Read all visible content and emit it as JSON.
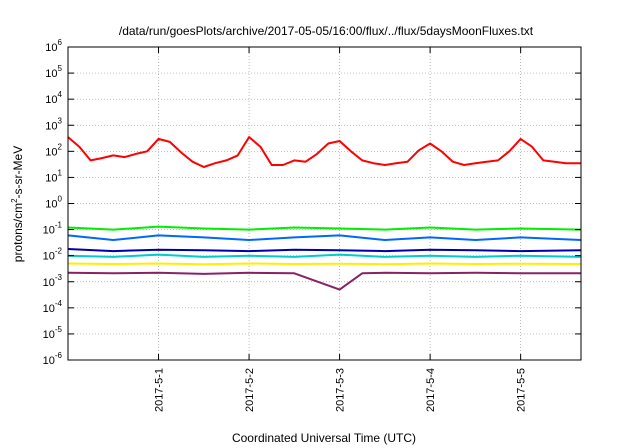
{
  "chart_data": {
    "type": "line",
    "title": "/data/run/goesPlots/archive/2017-05-05/16:00/flux/../flux/5daysMoonFluxes.txt",
    "xlabel": "Coordinated Universal Time (UTC)",
    "ylabel": "protons/cm2-s-sr-MeV",
    "ylabel_parts": {
      "pre": "protons/cm",
      "sup": "2",
      "post": "-s-sr-MeV"
    },
    "y_scale": "log",
    "ylim": [
      1e-06,
      1000000.0
    ],
    "y_ticks": [
      {
        "value": 1e-06,
        "base": "10",
        "exp": "-6"
      },
      {
        "value": 1e-05,
        "base": "10",
        "exp": "-5"
      },
      {
        "value": 0.0001,
        "base": "10",
        "exp": "-4"
      },
      {
        "value": 0.001,
        "base": "10",
        "exp": "-3"
      },
      {
        "value": 0.01,
        "base": "10",
        "exp": "-2"
      },
      {
        "value": 0.1,
        "base": "10",
        "exp": "-1"
      },
      {
        "value": 1,
        "base": "10",
        "exp": "0"
      },
      {
        "value": 10,
        "base": "10",
        "exp": "1"
      },
      {
        "value": 100,
        "base": "10",
        "exp": "2"
      },
      {
        "value": 1000,
        "base": "10",
        "exp": "3"
      },
      {
        "value": 10000,
        "base": "10",
        "exp": "4"
      },
      {
        "value": 100000,
        "base": "10",
        "exp": "5"
      },
      {
        "value": 1000000,
        "base": "10",
        "exp": "6"
      }
    ],
    "xlim": [
      "2017-04-30T00:00",
      "2017-05-05T16:00"
    ],
    "x_ticks": [
      "2017-5-1",
      "2017-5-2",
      "2017-5-3",
      "2017-5-4",
      "2017-5-5"
    ],
    "x_tick_dates": [
      "2017-05-01T00:00",
      "2017-05-02T00:00",
      "2017-05-03T00:00",
      "2017-05-04T00:00",
      "2017-05-05T00:00"
    ],
    "grid": true,
    "series": [
      {
        "color": "#ff0000",
        "points": [
          [
            "2017-04-30T00:00",
            350
          ],
          [
            "2017-04-30T03:00",
            150
          ],
          [
            "2017-04-30T06:00",
            45
          ],
          [
            "2017-04-30T09:00",
            55
          ],
          [
            "2017-04-30T12:00",
            70
          ],
          [
            "2017-04-30T15:00",
            60
          ],
          [
            "2017-04-30T18:00",
            80
          ],
          [
            "2017-04-30T21:00",
            100
          ],
          [
            "2017-05-01T00:00",
            300
          ],
          [
            "2017-05-01T03:00",
            230
          ],
          [
            "2017-05-01T06:00",
            90
          ],
          [
            "2017-05-01T09:00",
            40
          ],
          [
            "2017-05-01T12:00",
            25
          ],
          [
            "2017-05-01T15:00",
            35
          ],
          [
            "2017-05-01T18:00",
            45
          ],
          [
            "2017-05-01T21:00",
            70
          ],
          [
            "2017-05-02T00:00",
            350
          ],
          [
            "2017-05-02T03:00",
            150
          ],
          [
            "2017-05-02T06:00",
            30
          ],
          [
            "2017-05-02T09:00",
            30
          ],
          [
            "2017-05-02T12:00",
            45
          ],
          [
            "2017-05-02T15:00",
            40
          ],
          [
            "2017-05-02T18:00",
            80
          ],
          [
            "2017-05-02T21:00",
            200
          ],
          [
            "2017-05-03T00:00",
            250
          ],
          [
            "2017-05-03T03:00",
            100
          ],
          [
            "2017-05-03T06:00",
            45
          ],
          [
            "2017-05-03T09:00",
            35
          ],
          [
            "2017-05-03T12:00",
            30
          ],
          [
            "2017-05-03T15:00",
            35
          ],
          [
            "2017-05-03T18:00",
            40
          ],
          [
            "2017-05-03T21:00",
            110
          ],
          [
            "2017-05-04T00:00",
            200
          ],
          [
            "2017-05-04T03:00",
            100
          ],
          [
            "2017-05-04T06:00",
            40
          ],
          [
            "2017-05-04T09:00",
            30
          ],
          [
            "2017-05-04T12:00",
            35
          ],
          [
            "2017-05-04T15:00",
            40
          ],
          [
            "2017-05-04T18:00",
            45
          ],
          [
            "2017-05-04T21:00",
            100
          ],
          [
            "2017-05-05T00:00",
            300
          ],
          [
            "2017-05-05T03:00",
            150
          ],
          [
            "2017-05-05T06:00",
            45
          ],
          [
            "2017-05-05T09:00",
            40
          ],
          [
            "2017-05-05T12:00",
            35
          ],
          [
            "2017-05-05T16:00",
            35
          ]
        ]
      },
      {
        "color": "#00ee00",
        "points": [
          [
            "2017-04-30T00:00",
            0.12
          ],
          [
            "2017-04-30T12:00",
            0.1
          ],
          [
            "2017-05-01T00:00",
            0.13
          ],
          [
            "2017-05-01T12:00",
            0.11
          ],
          [
            "2017-05-02T00:00",
            0.1
          ],
          [
            "2017-05-02T12:00",
            0.12
          ],
          [
            "2017-05-03T00:00",
            0.11
          ],
          [
            "2017-05-03T12:00",
            0.1
          ],
          [
            "2017-05-04T00:00",
            0.12
          ],
          [
            "2017-05-04T12:00",
            0.1
          ],
          [
            "2017-05-05T00:00",
            0.11
          ],
          [
            "2017-05-05T16:00",
            0.1
          ]
        ]
      },
      {
        "color": "#0066ff",
        "points": [
          [
            "2017-04-30T00:00",
            0.06
          ],
          [
            "2017-04-30T12:00",
            0.04
          ],
          [
            "2017-05-01T00:00",
            0.06
          ],
          [
            "2017-05-01T12:00",
            0.05
          ],
          [
            "2017-05-02T00:00",
            0.04
          ],
          [
            "2017-05-02T12:00",
            0.05
          ],
          [
            "2017-05-03T00:00",
            0.06
          ],
          [
            "2017-05-03T12:00",
            0.04
          ],
          [
            "2017-05-04T00:00",
            0.05
          ],
          [
            "2017-05-04T12:00",
            0.04
          ],
          [
            "2017-05-05T00:00",
            0.05
          ],
          [
            "2017-05-05T16:00",
            0.04
          ]
        ]
      },
      {
        "color": "#0000aa",
        "points": [
          [
            "2017-04-30T00:00",
            0.018
          ],
          [
            "2017-04-30T12:00",
            0.015
          ],
          [
            "2017-05-01T00:00",
            0.017
          ],
          [
            "2017-05-01T12:00",
            0.016
          ],
          [
            "2017-05-02T00:00",
            0.015
          ],
          [
            "2017-05-02T12:00",
            0.017
          ],
          [
            "2017-05-03T00:00",
            0.016
          ],
          [
            "2017-05-03T12:00",
            0.015
          ],
          [
            "2017-05-04T00:00",
            0.017
          ],
          [
            "2017-05-04T12:00",
            0.016
          ],
          [
            "2017-05-05T00:00",
            0.015
          ],
          [
            "2017-05-05T16:00",
            0.016
          ]
        ]
      },
      {
        "color": "#00cccc",
        "points": [
          [
            "2017-04-30T00:00",
            0.01
          ],
          [
            "2017-04-30T12:00",
            0.009
          ],
          [
            "2017-05-01T00:00",
            0.011
          ],
          [
            "2017-05-01T12:00",
            0.009
          ],
          [
            "2017-05-02T00:00",
            0.01
          ],
          [
            "2017-05-02T12:00",
            0.009
          ],
          [
            "2017-05-03T00:00",
            0.011
          ],
          [
            "2017-05-03T12:00",
            0.009
          ],
          [
            "2017-05-04T00:00",
            0.01
          ],
          [
            "2017-05-04T12:00",
            0.009
          ],
          [
            "2017-05-05T00:00",
            0.01
          ],
          [
            "2017-05-05T16:00",
            0.009
          ]
        ]
      },
      {
        "color": "#ffee00",
        "points": [
          [
            "2017-04-30T00:00",
            0.005
          ],
          [
            "2017-04-30T12:00",
            0.0048
          ],
          [
            "2017-05-01T00:00",
            0.005
          ],
          [
            "2017-05-01T12:00",
            0.0047
          ],
          [
            "2017-05-02T00:00",
            0.005
          ],
          [
            "2017-05-02T12:00",
            0.0048
          ],
          [
            "2017-05-03T00:00",
            0.0049
          ],
          [
            "2017-05-03T12:00",
            0.0047
          ],
          [
            "2017-05-04T00:00",
            0.005
          ],
          [
            "2017-05-04T12:00",
            0.0048
          ],
          [
            "2017-05-05T00:00",
            0.0049
          ],
          [
            "2017-05-05T16:00",
            0.0048
          ]
        ]
      },
      {
        "color": "#882266",
        "points": [
          [
            "2017-04-30T00:00",
            0.0022
          ],
          [
            "2017-04-30T12:00",
            0.0021
          ],
          [
            "2017-05-01T00:00",
            0.0022
          ],
          [
            "2017-05-01T12:00",
            0.002
          ],
          [
            "2017-05-02T00:00",
            0.0022
          ],
          [
            "2017-05-02T12:00",
            0.0021
          ],
          [
            "2017-05-03T00:00",
            0.0005
          ],
          [
            "2017-05-03T06:00",
            0.0021
          ],
          [
            "2017-05-03T12:00",
            0.0022
          ],
          [
            "2017-05-04T00:00",
            0.0021
          ],
          [
            "2017-05-04T12:00",
            0.0022
          ],
          [
            "2017-05-05T00:00",
            0.0021
          ],
          [
            "2017-05-05T16:00",
            0.0021
          ]
        ]
      }
    ]
  }
}
